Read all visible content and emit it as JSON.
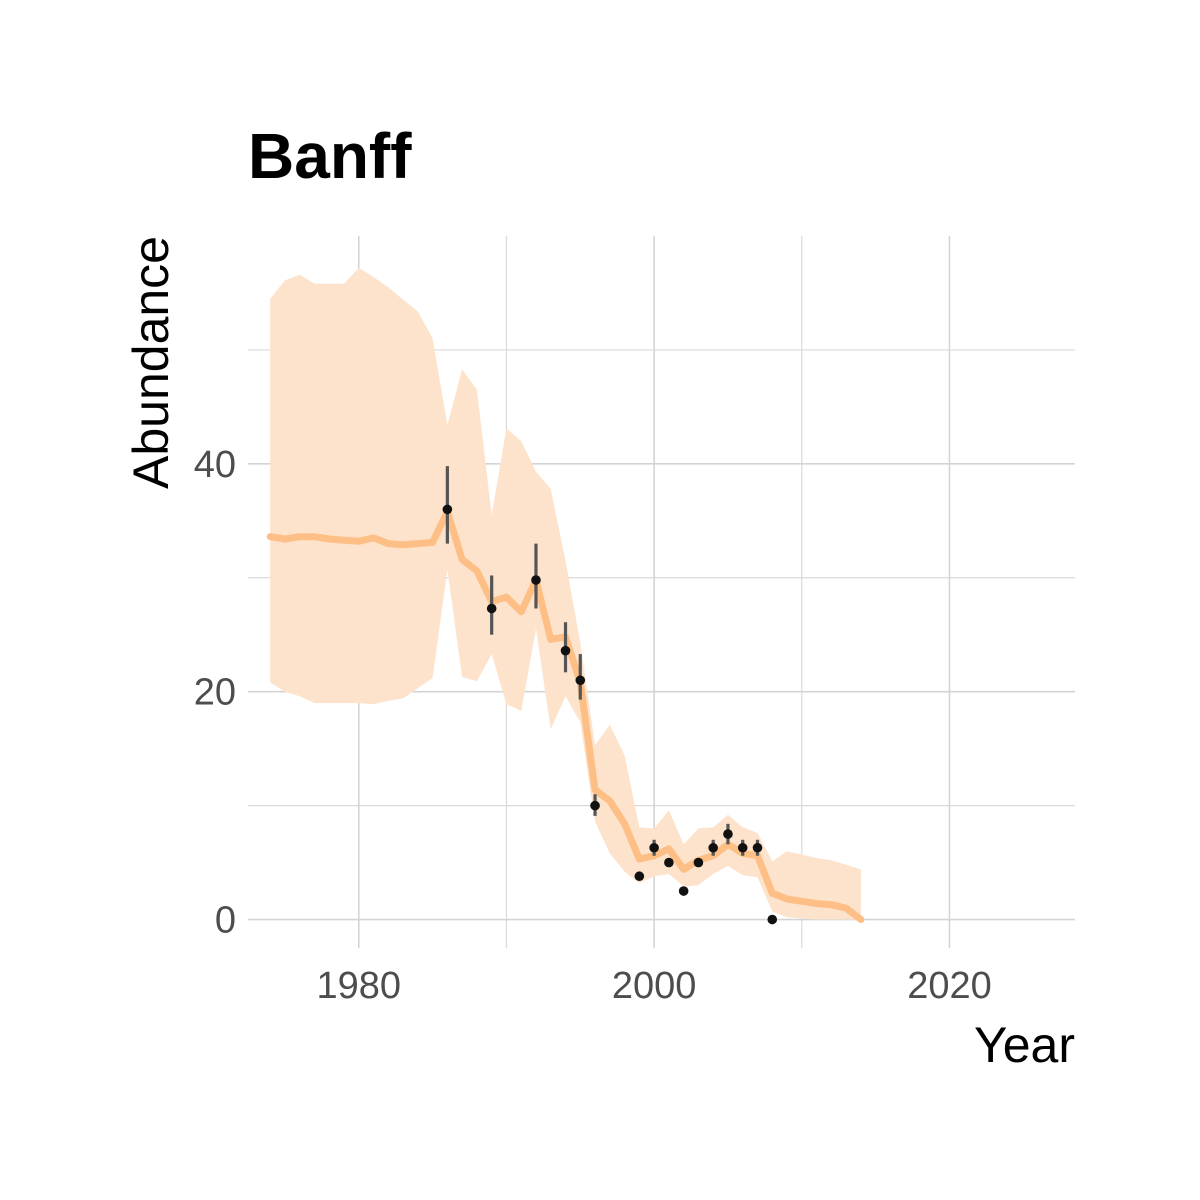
{
  "chart_data": {
    "type": "line",
    "title": "Banff",
    "xlabel": "Year",
    "ylabel": "Abundance",
    "xlim": [
      1972.5,
      2028.5
    ],
    "ylim": [
      -2.5,
      60
    ],
    "x_ticks": [
      1980,
      2000,
      2020
    ],
    "x_tick_labels": [
      "1980",
      "2000",
      "2020"
    ],
    "x_minor_ticks": [
      1990,
      2010
    ],
    "y_ticks": [
      0,
      20,
      40
    ],
    "y_tick_labels": [
      "0",
      "20",
      "40"
    ],
    "y_minor_ticks": [
      10,
      30,
      50
    ],
    "grid": true,
    "legend": "none",
    "colors": {
      "line": "#fdbf85",
      "band": "#fde3cc",
      "points": "#111111",
      "error_bars": "#555555",
      "grid": "#d4d4d4",
      "tick_labels": "#4d4d4d"
    },
    "series": [
      {
        "type": "line",
        "x": [
          1974,
          1975,
          1976,
          1977,
          1978,
          1979,
          1980,
          1981,
          1982,
          1983,
          1984,
          1985,
          1986,
          1987,
          1988,
          1989,
          1990,
          1991,
          1992,
          1993,
          1994,
          1995,
          1996,
          1997,
          1998,
          1999,
          2000,
          2001,
          2002,
          2003,
          2004,
          2005,
          2006,
          2007,
          2008,
          2009,
          2010,
          2011,
          2012,
          2013,
          2014
        ],
        "values": [
          33.6,
          33.4,
          33.6,
          33.6,
          33.4,
          33.3,
          33.2,
          33.5,
          33.0,
          32.9,
          33.0,
          33.1,
          35.8,
          31.6,
          30.6,
          27.9,
          28.3,
          27.0,
          29.8,
          24.6,
          24.8,
          20.8,
          11.4,
          10.4,
          8.4,
          5.3,
          5.6,
          6.2,
          4.4,
          5.2,
          5.6,
          6.6,
          5.8,
          5.6,
          2.3,
          1.8,
          1.6,
          1.4,
          1.3,
          1.0,
          0.0
        ]
      },
      {
        "type": "area",
        "x": [
          1974,
          1975,
          1976,
          1977,
          1978,
          1979,
          1980,
          1981,
          1982,
          1983,
          1984,
          1985,
          1986,
          1987,
          1988,
          1989,
          1990,
          1991,
          1992,
          1993,
          1994,
          1995,
          1996,
          1997,
          1998,
          1999,
          2000,
          2001,
          2002,
          2003,
          2004,
          2005,
          2006,
          2007,
          2008,
          2009,
          2010,
          2011,
          2012,
          2013,
          2014
        ],
        "upper": [
          54.5,
          56.1,
          56.6,
          55.8,
          55.8,
          55.8,
          57.2,
          56.4,
          55.5,
          54.4,
          53.4,
          51.0,
          43.4,
          48.3,
          46.5,
          35.5,
          43.1,
          42.0,
          39.3,
          37.8,
          31.5,
          24.3,
          15.3,
          17.1,
          14.4,
          8.1,
          8.0,
          9.6,
          6.6,
          8.0,
          8.1,
          9.2,
          8.1,
          7.6,
          5.1,
          6.0,
          5.7,
          5.4,
          5.2,
          4.8,
          4.4
        ],
        "lower": [
          20.8,
          20.0,
          19.6,
          19.0,
          19.0,
          19.0,
          19.0,
          18.9,
          19.2,
          19.4,
          20.3,
          21.2,
          30.7,
          21.3,
          20.9,
          23.3,
          18.9,
          18.3,
          25.5,
          16.7,
          19.6,
          17.3,
          8.6,
          5.8,
          4.2,
          3.2,
          3.8,
          4.0,
          2.9,
          3.0,
          4.0,
          4.7,
          3.9,
          3.7,
          0.7,
          0.2,
          0.1,
          0.0,
          0.0,
          0.0,
          0.0
        ]
      },
      {
        "type": "scatter",
        "x": [
          1986,
          1989,
          1992,
          1994,
          1995,
          1996,
          1999,
          2000,
          2001,
          2002,
          2003,
          2004,
          2005,
          2006,
          2007,
          2008
        ],
        "values": [
          36.0,
          27.3,
          29.8,
          23.6,
          21.0,
          10.0,
          3.8,
          6.3,
          5.0,
          2.5,
          5.0,
          6.3,
          7.5,
          6.3,
          6.3,
          0.0
        ],
        "error_low": [
          33.0,
          25.0,
          27.3,
          21.7,
          19.3,
          9.1,
          3.8,
          5.6,
          5.0,
          2.5,
          5.0,
          5.6,
          6.6,
          5.6,
          5.6,
          0.0
        ],
        "error_high": [
          39.8,
          30.2,
          33.0,
          26.1,
          23.3,
          11.0,
          3.8,
          7.0,
          5.0,
          2.5,
          5.0,
          7.0,
          8.4,
          7.0,
          7.0,
          0.0
        ]
      }
    ]
  }
}
